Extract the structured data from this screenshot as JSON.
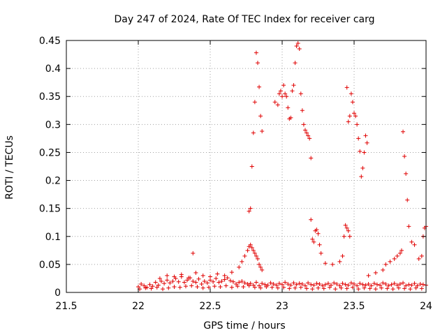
{
  "chart_data": {
    "type": "scatter",
    "title": "Day 247 of 2024, Rate Of TEC Index for receiver carg",
    "xlabel": "GPS time / hours",
    "ylabel": "ROTI / TECUs",
    "xlim": [
      21.5,
      24
    ],
    "ylim": [
      0,
      0.45
    ],
    "x_ticks": [
      21.5,
      22,
      22.5,
      23,
      23.5,
      24
    ],
    "x_tick_labels": [
      "21.5",
      "22",
      "22.5",
      "23",
      "23.5",
      "24"
    ],
    "y_ticks": [
      0,
      0.05,
      0.1,
      0.15,
      0.2,
      0.25,
      0.3,
      0.35,
      0.4,
      0.45
    ],
    "y_tick_labels": [
      "0",
      "0.05",
      "0.1",
      "0.15",
      "0.2",
      "0.25",
      "0.3",
      "0.35",
      "0.4",
      "0.45"
    ],
    "grid": true,
    "marker": "+",
    "color": "#e00000",
    "series": [
      {
        "name": "ROTI",
        "x": [
          22.0,
          22.02,
          22.04,
          22.06,
          22.08,
          22.1,
          22.12,
          22.14,
          22.16,
          22.18,
          22.2,
          22.22,
          22.24,
          22.26,
          22.28,
          22.3,
          22.32,
          22.34,
          22.36,
          22.38,
          22.4,
          22.42,
          22.44,
          22.46,
          22.48,
          22.5,
          22.52,
          22.54,
          22.56,
          22.58,
          22.6,
          22.62,
          22.64,
          22.66,
          22.68,
          22.7,
          22.72,
          22.74,
          22.76,
          22.78,
          22.8,
          22.82,
          22.84,
          22.86,
          22.88,
          22.9,
          22.92,
          22.94,
          22.96,
          22.98,
          23.0,
          23.02,
          23.04,
          23.06,
          23.08,
          23.1,
          23.12,
          23.14,
          23.16,
          23.18,
          23.2,
          23.22,
          23.24,
          23.26,
          23.28,
          23.3,
          23.32,
          23.34,
          23.36,
          23.38,
          23.4,
          23.42,
          23.44,
          23.46,
          23.48,
          23.5,
          23.52,
          23.54,
          23.56,
          23.58,
          23.6,
          23.62,
          23.64,
          23.66,
          23.68,
          23.7,
          23.72,
          23.74,
          23.76,
          23.78,
          23.8,
          23.82,
          23.84,
          23.86,
          23.88,
          23.9,
          23.92,
          23.94,
          23.96,
          23.98,
          24.0,
          22.01,
          22.05,
          22.09,
          22.13,
          22.17,
          22.21,
          22.25,
          22.29,
          22.33,
          22.37,
          22.41,
          22.45,
          22.49,
          22.53,
          22.57,
          22.61,
          22.65,
          22.69,
          22.73,
          22.77,
          22.81,
          22.85,
          22.89,
          22.93,
          22.97,
          23.01,
          23.05,
          23.09,
          23.13,
          23.17,
          23.21,
          23.25,
          23.29,
          23.33,
          23.37,
          23.41,
          23.45,
          23.49,
          23.53,
          23.57,
          23.61,
          23.65,
          23.69,
          23.73,
          23.77,
          23.81,
          23.85,
          23.89,
          23.93,
          23.97,
          22.15,
          22.2,
          22.25,
          22.3,
          22.35,
          22.4,
          22.45,
          22.5,
          22.55,
          22.6,
          22.65,
          22.7,
          22.72,
          22.74,
          22.76,
          22.77,
          22.78,
          22.79,
          22.8,
          22.81,
          22.82,
          22.83,
          22.84,
          22.85,
          22.86,
          22.38,
          22.77,
          22.78,
          22.79,
          22.8,
          22.81,
          22.82,
          22.83,
          22.84,
          22.85,
          22.86,
          22.95,
          22.97,
          22.98,
          22.99,
          23.0,
          23.01,
          23.02,
          23.03,
          23.04,
          23.05,
          23.06,
          23.07,
          23.08,
          23.09,
          23.1,
          23.11,
          23.12,
          23.13,
          23.14,
          23.15,
          23.16,
          23.17,
          23.18,
          23.19,
          23.2,
          23.2,
          23.21,
          23.22,
          23.23,
          23.24,
          23.25,
          23.26,
          23.27,
          23.3,
          23.35,
          23.4,
          23.42,
          23.43,
          23.44,
          23.45,
          23.46,
          23.47,
          23.45,
          23.46,
          23.47,
          23.48,
          23.49,
          23.5,
          23.51,
          23.52,
          23.53,
          23.54,
          23.55,
          23.56,
          23.57,
          23.58,
          23.59,
          23.6,
          23.65,
          23.7,
          23.72,
          23.75,
          23.78,
          23.8,
          23.82,
          23.83,
          23.84,
          23.85,
          23.86,
          23.87,
          23.88,
          23.9,
          23.92,
          23.95,
          23.97,
          23.98,
          23.99,
          24.0
        ],
        "y": [
          0.01,
          0.015,
          0.012,
          0.009,
          0.014,
          0.011,
          0.018,
          0.013,
          0.02,
          0.016,
          0.022,
          0.017,
          0.02,
          0.025,
          0.019,
          0.028,
          0.018,
          0.022,
          0.026,
          0.02,
          0.018,
          0.024,
          0.015,
          0.02,
          0.017,
          0.022,
          0.019,
          0.025,
          0.018,
          0.02,
          0.023,
          0.026,
          0.021,
          0.019,
          0.015,
          0.018,
          0.02,
          0.017,
          0.015,
          0.016,
          0.013,
          0.018,
          0.012,
          0.016,
          0.014,
          0.013,
          0.017,
          0.015,
          0.013,
          0.016,
          0.014,
          0.018,
          0.015,
          0.013,
          0.017,
          0.014,
          0.016,
          0.015,
          0.012,
          0.017,
          0.014,
          0.013,
          0.016,
          0.015,
          0.012,
          0.014,
          0.016,
          0.013,
          0.017,
          0.015,
          0.012,
          0.016,
          0.014,
          0.013,
          0.017,
          0.015,
          0.012,
          0.016,
          0.014,
          0.013,
          0.015,
          0.012,
          0.016,
          0.014,
          0.013,
          0.017,
          0.015,
          0.012,
          0.014,
          0.016,
          0.013,
          0.015,
          0.017,
          0.012,
          0.014,
          0.013,
          0.016,
          0.012,
          0.015,
          0.014,
          0.013,
          0.006,
          0.008,
          0.007,
          0.009,
          0.006,
          0.008,
          0.01,
          0.009,
          0.011,
          0.012,
          0.01,
          0.008,
          0.009,
          0.011,
          0.01,
          0.012,
          0.009,
          0.011,
          0.01,
          0.012,
          0.009,
          0.008,
          0.01,
          0.009,
          0.008,
          0.009,
          0.007,
          0.008,
          0.009,
          0.007,
          0.006,
          0.008,
          0.007,
          0.009,
          0.006,
          0.008,
          0.007,
          0.009,
          0.006,
          0.008,
          0.007,
          0.006,
          0.008,
          0.007,
          0.006,
          0.008,
          0.007,
          0.006,
          0.008,
          0.007,
          0.025,
          0.03,
          0.028,
          0.032,
          0.026,
          0.035,
          0.03,
          0.028,
          0.033,
          0.03,
          0.036,
          0.045,
          0.055,
          0.065,
          0.075,
          0.082,
          0.085,
          0.08,
          0.075,
          0.07,
          0.065,
          0.06,
          0.05,
          0.045,
          0.04,
          0.07,
          0.145,
          0.15,
          0.225,
          0.285,
          0.34,
          0.428,
          0.41,
          0.367,
          0.315,
          0.288,
          0.34,
          0.335,
          0.355,
          0.36,
          0.35,
          0.37,
          0.355,
          0.35,
          0.33,
          0.31,
          0.312,
          0.36,
          0.37,
          0.41,
          0.44,
          0.445,
          0.435,
          0.355,
          0.325,
          0.3,
          0.29,
          0.285,
          0.28,
          0.275,
          0.24,
          0.13,
          0.095,
          0.09,
          0.11,
          0.112,
          0.105,
          0.085,
          0.07,
          0.052,
          0.05,
          0.055,
          0.065,
          0.1,
          0.12,
          0.115,
          0.11,
          0.1,
          0.366,
          0.305,
          0.315,
          0.355,
          0.34,
          0.32,
          0.315,
          0.3,
          0.275,
          0.252,
          0.207,
          0.222,
          0.25,
          0.28,
          0.267,
          0.03,
          0.035,
          0.04,
          0.05,
          0.055,
          0.06,
          0.065,
          0.07,
          0.075,
          0.287,
          0.243,
          0.212,
          0.165,
          0.118,
          0.09,
          0.085,
          0.06,
          0.065,
          0.1,
          0.115,
          0.118
        ]
      }
    ]
  }
}
